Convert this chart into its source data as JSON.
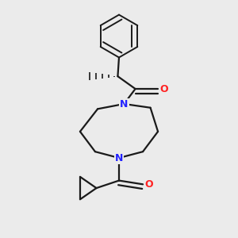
{
  "background_color": "#ebebeb",
  "bond_color": "#1a1a1a",
  "nitrogen_color": "#2222ff",
  "oxygen_color": "#ff2222",
  "line_width": 1.6,
  "dbo": 0.018,
  "figsize": [
    3.0,
    3.0
  ],
  "dpi": 100,
  "xlim": [
    0.15,
    0.85
  ],
  "ylim": [
    0.05,
    0.98
  ]
}
